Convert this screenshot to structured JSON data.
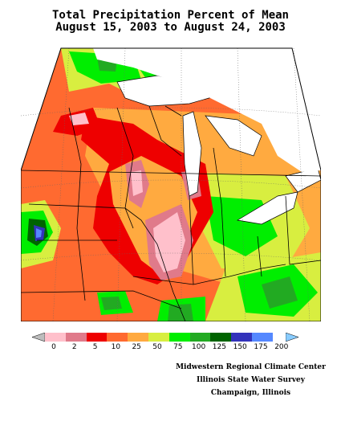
{
  "title": {
    "line1": "Total Precipitation Percent of Mean",
    "line2": "August 15, 2003 to August 24, 2003"
  },
  "map": {
    "variable": "precipitation-percent-of-mean",
    "region": "Midwest United States"
  },
  "legend": {
    "labels": [
      "0",
      "2",
      "5",
      "10",
      "25",
      "50",
      "75",
      "100",
      "125",
      "150",
      "175",
      "200"
    ],
    "colors": [
      "#bdbdbd",
      "#ffc0cb",
      "#e07a8a",
      "#ee0000",
      "#ff6a30",
      "#ffaa40",
      "#d8ee40",
      "#00ee00",
      "#22aa22",
      "#006400",
      "#3333bb",
      "#5588ff",
      "#88ccff"
    ]
  },
  "credits": {
    "line1": "Midwestern Regional Climate Center",
    "line2": "Illinois State Water Survey",
    "line3": "Champaign, Illinois"
  }
}
